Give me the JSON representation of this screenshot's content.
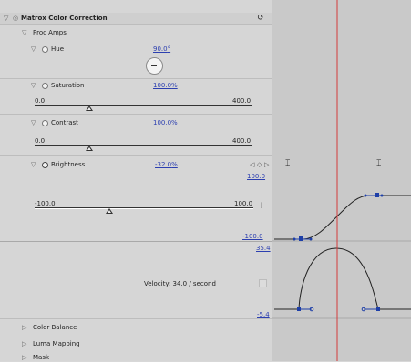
{
  "effect": {
    "title": "Matrox Color Correction",
    "reset_glyph": "↺"
  },
  "group": {
    "label": "Proc Amps"
  },
  "hue": {
    "label": "Hue",
    "value": "90.0",
    "unit": "°"
  },
  "saturation": {
    "label": "Saturation",
    "value": "100.0",
    "unit": "%",
    "min": "0.0",
    "max": "400.0",
    "level": 0.25
  },
  "contrast": {
    "label": "Contrast",
    "value": "100.0",
    "unit": "%",
    "min": "0.0",
    "max": "400.0",
    "level": 0.25
  },
  "brightness": {
    "label": "Brightness",
    "value": "-32.0",
    "unit": "%",
    "min": "-100.0",
    "max": "100.0",
    "level": 0.34,
    "graph_top": "100.0",
    "graph_bottom": "-100.0",
    "keyframe_nav": [
      "◁",
      "◇",
      "▷"
    ]
  },
  "velocity": {
    "label": "Velocity: 34.0 / second",
    "top": "35.4",
    "bottom": "-5.4"
  },
  "collapsed_groups": [
    {
      "label": "Color Balance"
    },
    {
      "label": "Luma Mapping"
    },
    {
      "label": "Mask"
    }
  ],
  "timeline": {
    "markers": [
      "⌶",
      "⌶"
    ],
    "colors": {
      "playhead": "#d23a3a",
      "curve": "#222222",
      "keyframe": "#1e3fa8"
    }
  }
}
